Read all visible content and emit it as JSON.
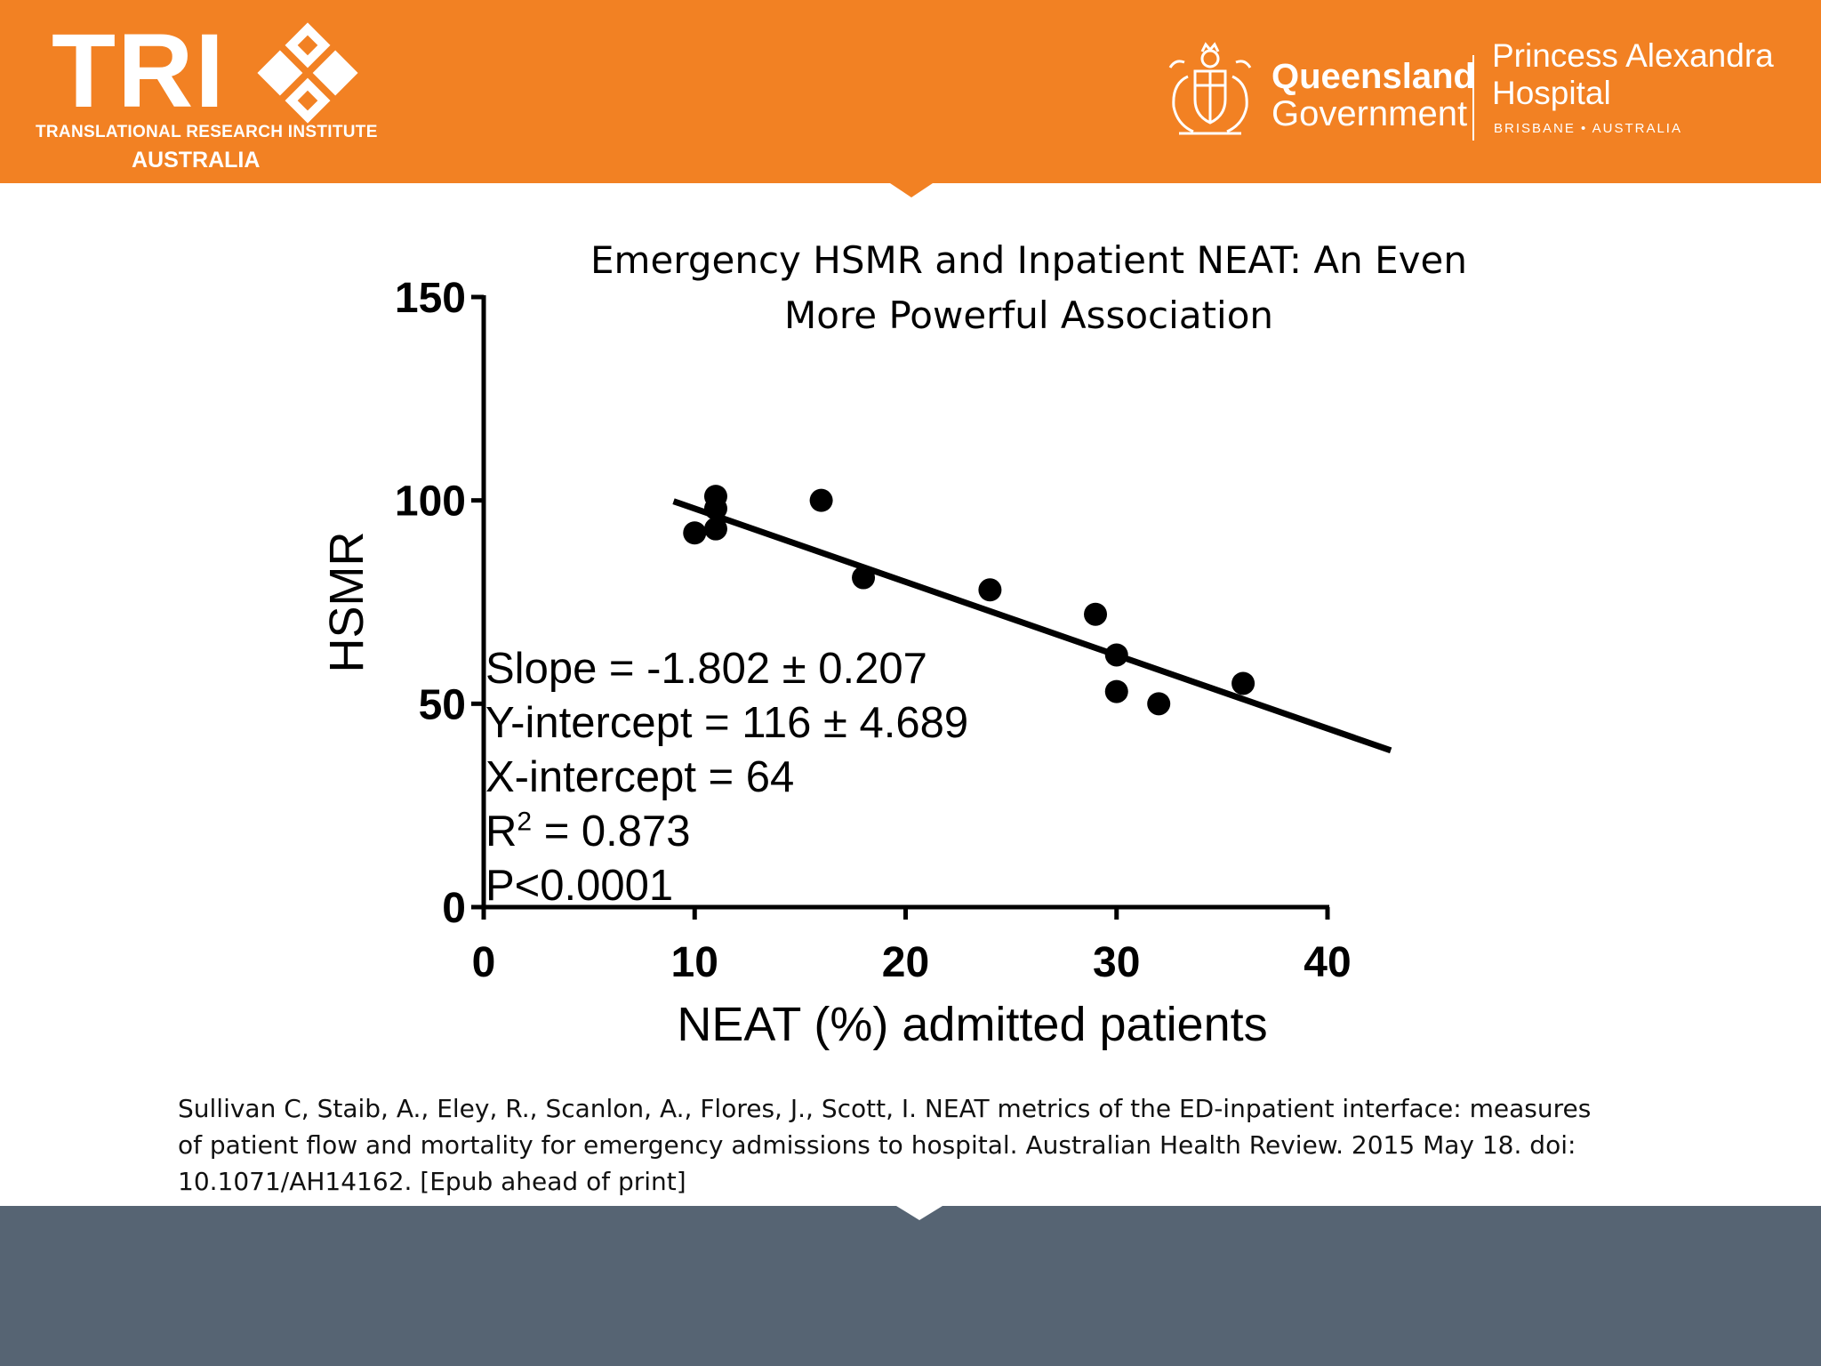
{
  "header": {
    "tri_logo_text": "TRI",
    "tri_subtitle_line1": "TRANSLATIONAL RESEARCH INSTITUTE",
    "tri_subtitle_line2": "AUSTRALIA",
    "qld_line1": "Queensland",
    "qld_line2": "Government",
    "hospital_line1": "Princess Alexandra",
    "hospital_line2": "Hospital",
    "hospital_line3": "BRISBANE • AUSTRALIA",
    "brand_color": "#F28123"
  },
  "chart_data": {
    "type": "scatter",
    "title_line1": "Emergency HSMR and Inpatient NEAT: An Even",
    "title_line2": "More Powerful Association",
    "xlabel": "NEAT (%) admitted patients",
    "ylabel": "HSMR",
    "xlim": [
      0,
      40
    ],
    "ylim": [
      0,
      150
    ],
    "x_ticks": [
      0,
      10,
      20,
      30,
      40
    ],
    "y_ticks": [
      0,
      50,
      100,
      150
    ],
    "grid": false,
    "points": [
      {
        "x": 10,
        "y": 92
      },
      {
        "x": 11,
        "y": 93
      },
      {
        "x": 11,
        "y": 98
      },
      {
        "x": 11,
        "y": 101
      },
      {
        "x": 16,
        "y": 100
      },
      {
        "x": 18,
        "y": 81
      },
      {
        "x": 24,
        "y": 78
      },
      {
        "x": 29,
        "y": 72
      },
      {
        "x": 30,
        "y": 62
      },
      {
        "x": 30,
        "y": 53
      },
      {
        "x": 32,
        "y": 50
      },
      {
        "x": 36,
        "y": 55
      }
    ],
    "fit_line": {
      "slope": -1.802,
      "intercept": 116,
      "x_start": 9,
      "x_end": 43
    },
    "stats": {
      "slope": "Slope = -1.802 ± 0.207",
      "y_intercept": "Y-intercept = 116 ± 4.689",
      "x_intercept": "X-intercept =  64",
      "r2_prefix": "R",
      "r2_sup": "2",
      "r2_value": " = 0.873",
      "p_value": "P<0.0001"
    }
  },
  "citation": "Sullivan C, Staib, A., Eley, R., Scanlon, A., Flores, J., Scott, I. NEAT metrics of the ED-inpatient interface: measures of patient flow and mortality for emergency admissions to hospital. Australian Health Review. 2015 May 18. doi: 10.1071/AH14162. [Epub ahead of print]",
  "footer_color": "#566473"
}
